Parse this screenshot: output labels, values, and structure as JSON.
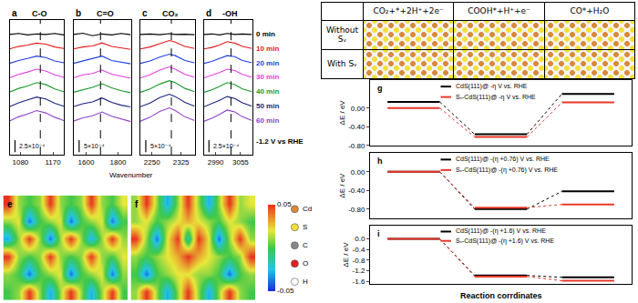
{
  "chart_data": [
    {
      "type": "line",
      "x_label": "Wavenumber",
      "tick_labels": "x",
      "grid": false,
      "legend": "right",
      "note": "-1.2 V vs RHE",
      "series": [
        {
          "name": "0 min",
          "color": "#000000"
        },
        {
          "name": "10 min",
          "color": "#e41a1c"
        },
        {
          "name": "20 min",
          "color": "#1f3fe0"
        },
        {
          "name": "30 min",
          "color": "#e040e0"
        },
        {
          "name": "40 min",
          "color": "#1a9a2a"
        },
        {
          "name": "50 min",
          "color": "#1a237e"
        },
        {
          "name": "60 min",
          "color": "#8e44c8"
        }
      ],
      "panels": [
        {
          "label": "a",
          "title": "C-O",
          "x": [
            1050,
            1075,
            1100,
            1125,
            1150,
            1175,
            1200
          ],
          "xlim": [
            1050,
            1200
          ],
          "xticks": [
            1080,
            1170
          ],
          "ylim": [
            -0.0004,
            0.0024
          ],
          "reference_x": 1135,
          "scale_bar": {
            "value": 0.00025,
            "label": "2.5×10⁻⁴"
          },
          "values": [
            [
              0.0021,
              0.00212,
              0.00209,
              0.00211,
              0.0021,
              0.00212,
              0.00209
            ],
            [
              0.0018,
              0.00185,
              0.00188,
              0.00192,
              0.0019,
              0.00184,
              0.00181
            ],
            [
              0.0015,
              0.00156,
              0.0016,
              0.00165,
              0.00162,
              0.00155,
              0.00151
            ],
            [
              0.0012,
              0.00127,
              0.00132,
              0.00138,
              0.00134,
              0.00126,
              0.00121
            ],
            [
              0.0009,
              0.00098,
              0.00103,
              0.0011,
              0.00106,
              0.00097,
              0.00091
            ],
            [
              0.0006,
              0.00068,
              0.00074,
              0.0008,
              0.00076,
              0.00067,
              0.00061
            ],
            [
              0.0003,
              0.00039,
              0.00045,
              0.00052,
              0.00047,
              0.00038,
              0.00031
            ]
          ]
        },
        {
          "label": "b",
          "title": "C=O",
          "x": [
            1520,
            1580,
            1640,
            1700,
            1760,
            1820,
            1880
          ],
          "xlim": [
            1520,
            1880
          ],
          "xticks": [
            1600,
            1800
          ],
          "ylim": [
            -0.0008,
            0.0048
          ],
          "reference_x": 1690,
          "scale_bar": {
            "value": 0.0005,
            "label": "5×10⁻⁴"
          },
          "values": [
            [
              0.0042,
              0.00425,
              0.00415,
              0.00422,
              0.00418,
              0.00424,
              0.00419
            ],
            [
              0.0036,
              0.00368,
              0.00372,
              0.00385,
              0.0037,
              0.00365,
              0.00358
            ],
            [
              0.003,
              0.0031,
              0.00318,
              0.0033,
              0.00312,
              0.00305,
              0.00298
            ],
            [
              0.0024,
              0.00252,
              0.00258,
              0.00272,
              0.00255,
              0.00246,
              0.00238
            ],
            [
              0.0018,
              0.0019,
              0.002,
              0.00215,
              0.00198,
              0.00186,
              0.00178
            ],
            [
              0.0012,
              0.00132,
              0.0014,
              0.00156,
              0.00138,
              0.00126,
              0.00119
            ],
            [
              0.0006,
              0.00074,
              0.00082,
              0.00098,
              0.0008,
              0.00068,
              0.00058
            ]
          ]
        },
        {
          "label": "c",
          "title": "CO₂",
          "x": [
            2220,
            2245,
            2270,
            2295,
            2310,
            2335,
            2360
          ],
          "xlim": [
            2220,
            2360
          ],
          "xticks": [
            2250,
            2325
          ],
          "ylim": [
            -0.0008,
            0.0048
          ],
          "reference_x": 2300,
          "scale_bar": {
            "value": 0.0005,
            "label": "5×10⁻⁴"
          },
          "values": [
            [
              0.0042,
              0.00422,
              0.00419,
              0.00423,
              0.0042,
              0.00421,
              0.00419
            ],
            [
              0.0036,
              0.00368,
              0.00382,
              0.00395,
              0.00388,
              0.0037,
              0.00362
            ],
            [
              0.003,
              0.0031,
              0.00326,
              0.00338,
              0.00332,
              0.00312,
              0.00302
            ],
            [
              0.0024,
              0.00252,
              0.00272,
              0.00285,
              0.00276,
              0.00254,
              0.00242
            ],
            [
              0.0018,
              0.00194,
              0.00214,
              0.00228,
              0.0022,
              0.00196,
              0.00182
            ],
            [
              0.0012,
              0.00135,
              0.00158,
              0.00172,
              0.00162,
              0.00138,
              0.00122
            ],
            [
              0.0006,
              0.00076,
              0.001,
              0.00115,
              0.00104,
              0.00078,
              0.00062
            ]
          ]
        },
        {
          "label": "d",
          "title": "-OH",
          "x": [
            2960,
            2980,
            3000,
            3020,
            3040,
            3060,
            3085
          ],
          "xlim": [
            2960,
            3085
          ],
          "xticks": [
            2990,
            3055
          ],
          "ylim": [
            -0.0004,
            0.0024
          ],
          "reference_x": 3030,
          "scale_bar": {
            "value": 0.00025,
            "label": "2.5×10⁻⁴"
          },
          "values": [
            [
              0.0021,
              0.00211,
              0.00209,
              0.00212,
              0.0021,
              0.00211,
              0.0021
            ],
            [
              0.0018,
              0.00183,
              0.00188,
              0.00195,
              0.00192,
              0.00185,
              0.00181
            ],
            [
              0.0015,
              0.00154,
              0.0016,
              0.00166,
              0.00164,
              0.00156,
              0.00151
            ],
            [
              0.0012,
              0.00125,
              0.00131,
              0.00138,
              0.00135,
              0.00127,
              0.00121
            ],
            [
              0.0009,
              0.00095,
              0.00102,
              0.0011,
              0.00106,
              0.00097,
              0.00091
            ],
            [
              0.0006,
              0.00066,
              0.00073,
              0.00081,
              0.00077,
              0.00068,
              0.00061
            ],
            [
              0.0003,
              0.00036,
              0.00044,
              0.00053,
              0.00049,
              0.00039,
              0.00031
            ]
          ]
        }
      ]
    },
    {
      "type": "heatmap",
      "tick_labels": false,
      "colorbar": {
        "range": [
          -0.05,
          0.05
        ],
        "ticks": [
          0.05,
          -0.05
        ]
      },
      "atoms": [
        {
          "name": "Cd",
          "color": "#d9893c"
        },
        {
          "name": "S",
          "color": "#f2e03a"
        },
        {
          "name": "C",
          "color": "#888888"
        },
        {
          "name": "O",
          "color": "#e02020"
        },
        {
          "name": "H",
          "color": "#ffffff"
        }
      ],
      "panels": [
        {
          "label": "e",
          "cells": [
            [
              0,
              0.01,
              0.05,
              0.01,
              -0.03,
              0.01,
              0.05,
              0.01,
              -0.03,
              0.01,
              0.05,
              0
            ],
            [
              0.01,
              0,
              -0.04,
              0,
              0.01,
              0.02,
              -0.04,
              0,
              0.01,
              0.02,
              -0.04,
              0.01
            ],
            [
              0.05,
              0.01,
              0,
              0.01,
              0.05,
              0.01,
              0,
              0.01,
              0.05,
              0.01,
              0,
              0.02
            ],
            [
              -0.03,
              0.01,
              0.05,
              0.01,
              -0.04,
              0.01,
              0.05,
              0.01,
              -0.03,
              0.01,
              0.05,
              0.01
            ],
            [
              0.01,
              0.02,
              -0.04,
              0,
              0.01,
              0.02,
              -0.04,
              0,
              0.01,
              0.02,
              -0.04,
              0
            ],
            [
              0.05,
              0.01,
              0,
              0.01,
              0.05,
              0.01,
              0,
              0.01,
              0.05,
              0.01,
              0,
              0.02
            ]
          ]
        },
        {
          "label": "f",
          "cells": [
            [
              0.01,
              0.05,
              0.01,
              -0.03,
              0.01,
              0.05,
              0.01,
              -0.03,
              0.01,
              0.05,
              0.01,
              0
            ],
            [
              0,
              -0.04,
              0,
              0.01,
              0.02,
              0.02,
              0.01,
              0.01,
              0,
              -0.04,
              0,
              0.01
            ],
            [
              0.01,
              0,
              0.01,
              0.02,
              0.03,
              0.05,
              0.03,
              0.02,
              0.01,
              0,
              0.01,
              0.05
            ],
            [
              0.05,
              0.01,
              -0.04,
              0.02,
              0.05,
              -0.02,
              0.05,
              0.02,
              -0.04,
              0.01,
              0.05,
              0.01
            ],
            [
              0.01,
              0.02,
              0,
              0.01,
              0.02,
              0.03,
              0.02,
              0.01,
              0,
              0.02,
              0.01,
              0
            ],
            [
              0.01,
              0.05,
              0.01,
              -0.03,
              0.01,
              0.05,
              0.01,
              -0.03,
              0.01,
              0.05,
              0.01,
              0.02
            ]
          ]
        }
      ]
    },
    {
      "type": "level",
      "y_label": "ΔE / eV",
      "x_label": "Reaction corrdinates",
      "categories": [
        null,
        null,
        null
      ],
      "tick_labels": "y",
      "line_style": "dotted",
      "panels": [
        {
          "label": "g",
          "ylim": [
            -0.8,
            0.6
          ],
          "yticks": [
            {
              "value": 0,
              "label": "0.00"
            },
            {
              "value": -0.4,
              "label": "-0.40"
            },
            {
              "value": -0.8,
              "label": "-0.80"
            }
          ],
          "series": [
            {
              "name": "CdS(111)@ -η V vs. RHE",
              "color": "#000000",
              "values": [
                0.13,
                -0.56,
                0.3
              ]
            },
            {
              "name": "Sᵥ-CdS(111)@ -η V vs. RHE",
              "color": "#e8382b",
              "values": [
                0.0,
                -0.62,
                0.12
              ]
            }
          ]
        },
        {
          "label": "h",
          "ylim": [
            -1.0,
            0.4
          ],
          "yticks": [
            {
              "value": 0,
              "label": "0.00"
            },
            {
              "value": -0.4,
              "label": "-0.40"
            },
            {
              "value": -0.8,
              "label": "-0.80"
            }
          ],
          "series": [
            {
              "name": "CdS(111)@ -(η +0.76) V vs. RHE",
              "color": "#000000",
              "values": [
                0,
                -0.8,
                -0.42
              ]
            },
            {
              "name": "Sᵥ-CdS(111)@ -(η +0.76) V vs. RHE",
              "color": "#e8382b",
              "values": [
                0,
                -0.77,
                -0.7
              ]
            }
          ]
        },
        {
          "label": "i",
          "ylim": [
            -1.7,
            0.5
          ],
          "yticks": [
            {
              "value": 0,
              "label": "0.0"
            },
            -0.4,
            -0.8,
            -1.2,
            -1.6
          ],
          "series": [
            {
              "name": "CdS(111)@ -(η +1.6) V vs. RHE",
              "color": "#000000",
              "values": [
                0,
                -1.38,
                -1.45
              ]
            },
            {
              "name": "Sᵥ-CdS(111)@ -(η +1.6) V vs. RHE",
              "color": "#e8382b",
              "values": [
                0,
                -1.42,
                -1.58
              ]
            }
          ]
        }
      ]
    }
  ],
  "table": {
    "columns": [
      "CO₂+*+2H⁺+2e⁻",
      "COOH*+H⁺+e⁻",
      "CO*+H₂O"
    ],
    "rows": [
      "Without Sᵥ",
      "With Sᵥ"
    ]
  }
}
